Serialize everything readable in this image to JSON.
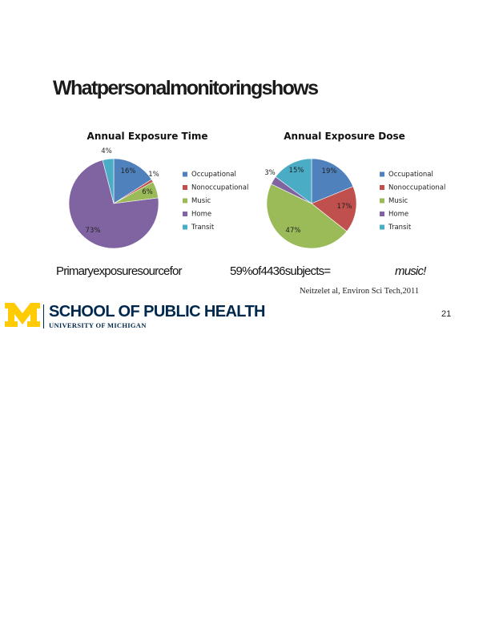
{
  "slide": {
    "title": "Whatpersonalmonitoringshows",
    "note_parts": [
      "Primaryexposuresourcefor",
      "59%of4436subjects=",
      "music!"
    ],
    "citation": "Neitzelet al,   Environ  Sci Tech,2011",
    "school": "SCHOOL OF PUBLIC HEALTH",
    "university": "UNIVERSITY OF MICHIGAN",
    "page_number": "21"
  },
  "colors": {
    "Occupational": "#4f81bd",
    "Nonoccupational": "#c0504d",
    "Music": "#9bbb59",
    "Home": "#8064a2",
    "Transit": "#4bacc6",
    "maize": "#ffcb05",
    "blue": "#00274c"
  },
  "chart_data": [
    {
      "type": "pie",
      "title": "Annual Exposure Time",
      "labels": [
        "Occupational",
        "Nonoccupational",
        "Music",
        "Home",
        "Transit"
      ],
      "values": [
        16,
        1,
        6,
        73,
        4
      ],
      "data_labels": [
        "16%",
        "1%",
        "6%",
        "73%",
        "4%"
      ],
      "legend": "right"
    },
    {
      "type": "pie",
      "title": "Annual Exposure Dose",
      "labels": [
        "Occupational",
        "Nonoccupational",
        "Music",
        "Home",
        "Transit"
      ],
      "values": [
        19,
        17,
        47,
        3,
        15
      ],
      "data_labels": [
        "19%",
        "17%",
        "47%",
        "3%",
        "15%"
      ],
      "legend": "right"
    }
  ]
}
